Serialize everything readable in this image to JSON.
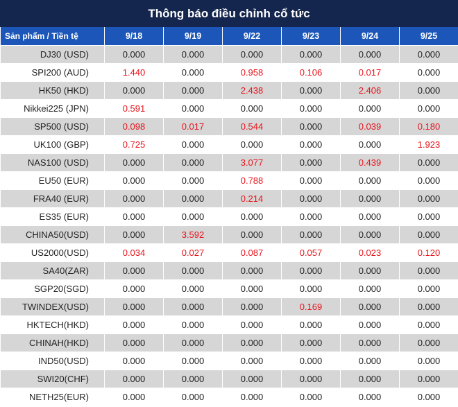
{
  "title": "Thông báo điều chỉnh cổ tức",
  "header": {
    "first_col": "Sản phẩm / Tiền tệ",
    "dates": [
      "9/18",
      "9/19",
      "9/22",
      "9/23",
      "9/24",
      "9/25"
    ]
  },
  "highlight_color": "#e8141b",
  "rows": [
    {
      "name": "DJ30 (USD)",
      "values": [
        "0.000",
        "0.000",
        "0.000",
        "0.000",
        "0.000",
        "0.000"
      ]
    },
    {
      "name": "SPI200 (AUD)",
      "values": [
        "1.440",
        "0.000",
        "0.958",
        "0.106",
        "0.017",
        "0.000"
      ]
    },
    {
      "name": "HK50 (HKD)",
      "values": [
        "0.000",
        "0.000",
        "2.438",
        "0.000",
        "2.406",
        "0.000"
      ]
    },
    {
      "name": "Nikkei225 (JPN)",
      "values": [
        "0.591",
        "0.000",
        "0.000",
        "0.000",
        "0.000",
        "0.000"
      ]
    },
    {
      "name": "SP500 (USD)",
      "values": [
        "0.098",
        "0.017",
        "0.544",
        "0.000",
        "0.039",
        "0.180"
      ]
    },
    {
      "name": "UK100 (GBP)",
      "values": [
        "0.725",
        "0.000",
        "0.000",
        "0.000",
        "0.000",
        "1.923"
      ]
    },
    {
      "name": "NAS100 (USD)",
      "values": [
        "0.000",
        "0.000",
        "3.077",
        "0.000",
        "0.439",
        "0.000"
      ]
    },
    {
      "name": "EU50 (EUR)",
      "values": [
        "0.000",
        "0.000",
        "0.788",
        "0.000",
        "0.000",
        "0.000"
      ]
    },
    {
      "name": "FRA40 (EUR)",
      "values": [
        "0.000",
        "0.000",
        "0.214",
        "0.000",
        "0.000",
        "0.000"
      ]
    },
    {
      "name": "ES35 (EUR)",
      "values": [
        "0.000",
        "0.000",
        "0.000",
        "0.000",
        "0.000",
        "0.000"
      ]
    },
    {
      "name": "CHINA50(USD)",
      "values": [
        "0.000",
        "3.592",
        "0.000",
        "0.000",
        "0.000",
        "0.000"
      ]
    },
    {
      "name": "US2000(USD)",
      "values": [
        "0.034",
        "0.027",
        "0.087",
        "0.057",
        "0.023",
        "0.120"
      ]
    },
    {
      "name": "SA40(ZAR)",
      "values": [
        "0.000",
        "0.000",
        "0.000",
        "0.000",
        "0.000",
        "0.000"
      ]
    },
    {
      "name": "SGP20(SGD)",
      "values": [
        "0.000",
        "0.000",
        "0.000",
        "0.000",
        "0.000",
        "0.000"
      ]
    },
    {
      "name": "TWINDEX(USD)",
      "values": [
        "0.000",
        "0.000",
        "0.000",
        "0.169",
        "0.000",
        "0.000"
      ]
    },
    {
      "name": "HKTECH(HKD)",
      "values": [
        "0.000",
        "0.000",
        "0.000",
        "0.000",
        "0.000",
        "0.000"
      ]
    },
    {
      "name": "CHINAH(HKD)",
      "values": [
        "0.000",
        "0.000",
        "0.000",
        "0.000",
        "0.000",
        "0.000"
      ]
    },
    {
      "name": "IND50(USD)",
      "values": [
        "0.000",
        "0.000",
        "0.000",
        "0.000",
        "0.000",
        "0.000"
      ]
    },
    {
      "name": "SWI20(CHF)",
      "values": [
        "0.000",
        "0.000",
        "0.000",
        "0.000",
        "0.000",
        "0.000"
      ]
    },
    {
      "name": "NETH25(EUR)",
      "values": [
        "0.000",
        "0.000",
        "0.000",
        "0.000",
        "0.000",
        "0.000"
      ]
    }
  ]
}
